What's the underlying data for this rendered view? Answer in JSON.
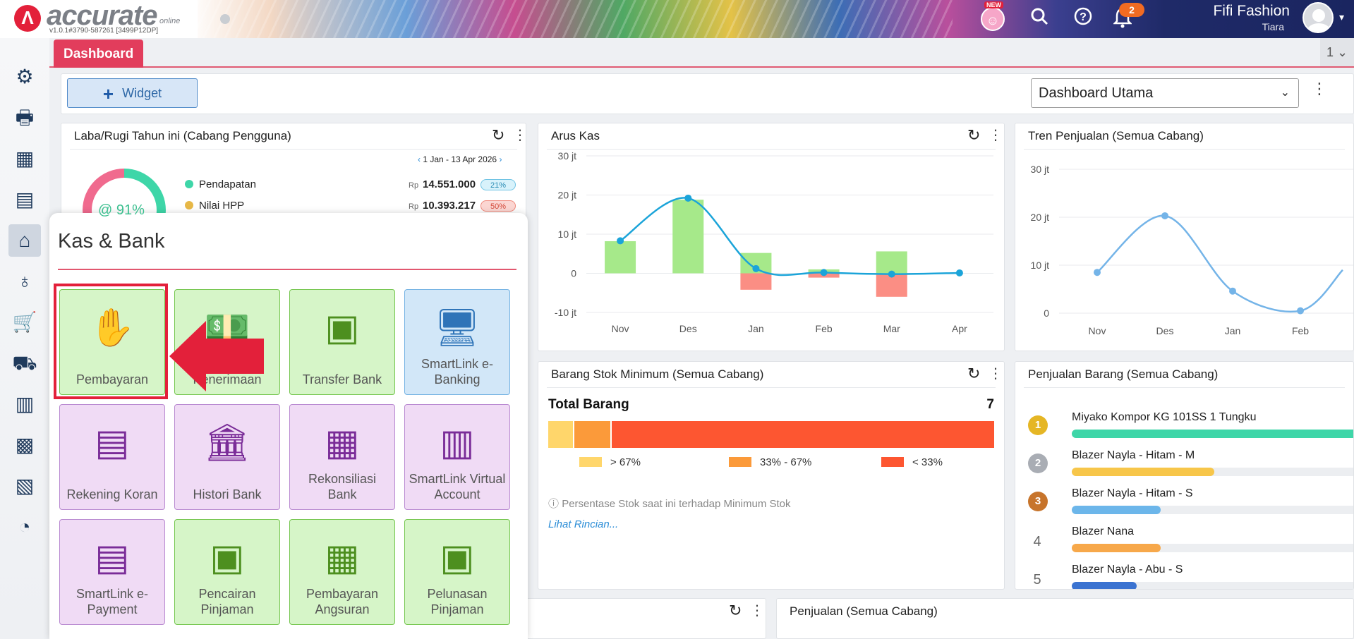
{
  "topbar": {
    "brand": "accurate",
    "brand_suffix": "online",
    "version": "v1.0.1#3790-587261 [3499P12DP]",
    "new_badge": "NEW",
    "notification_count": "2",
    "company": "Fifi Fashion",
    "user": "Tiara"
  },
  "tabs": {
    "active": "Dashboard",
    "counter": "1"
  },
  "toolbar": {
    "widget_label": "Widget",
    "dashboard_select": "Dashboard Utama"
  },
  "laba_rugi": {
    "title": "Laba/Rugi Tahun ini (Cabang Pengguna)",
    "range": "1 Jan - 13 Apr 2026",
    "ring_label": "@ 91%",
    "rows": [
      {
        "label": "Pendapatan",
        "currency": "Rp",
        "value": "14.551.000",
        "badge": "21%",
        "color": "#3ed6a8"
      },
      {
        "label": "Nilai HPP",
        "currency": "Rp",
        "value": "10.393.217",
        "badge": "50%",
        "color": "#e7b847"
      }
    ]
  },
  "arus_kas": {
    "title": "Arus Kas",
    "chart_data": {
      "type": "bar",
      "categories": [
        "Nov",
        "Des",
        "Jan",
        "Feb",
        "Mar",
        "Apr"
      ],
      "ylim": [
        -10,
        30
      ],
      "yticks": [
        "30 jt",
        "20 jt",
        "10 jt",
        "0",
        "-10 jt"
      ],
      "series": [
        {
          "kind": "bar",
          "color": "#a6e98a",
          "values": [
            8.2,
            18.8,
            5.2,
            1.0,
            5.6,
            0
          ]
        },
        {
          "kind": "bar",
          "color": "#fb8e84",
          "values": [
            0,
            0,
            -4.2,
            -1.1,
            -6.0,
            0
          ]
        },
        {
          "kind": "line",
          "color": "#1ba4d9",
          "values": [
            8.3,
            19.2,
            1.2,
            0.2,
            -0.2,
            0.1
          ]
        }
      ]
    }
  },
  "tren_penjualan": {
    "title": "Tren Penjualan (Semua Cabang)",
    "chart_data": {
      "type": "line",
      "categories": [
        "Nov",
        "Des",
        "Jan",
        "Feb"
      ],
      "ylim": [
        0,
        30
      ],
      "yticks": [
        "30 jt",
        "20 jt",
        "10 jt",
        "0"
      ],
      "series": [
        {
          "color": "#74b4e8",
          "values": [
            8.5,
            20.3,
            4.6,
            0.5
          ]
        }
      ]
    }
  },
  "stok_minimum": {
    "title": "Barang Stok Minimum (Semua Cabang)",
    "total_label": "Total Barang",
    "total_value": "7",
    "segments": [
      {
        "share": 1,
        "color": "#ffd66b"
      },
      {
        "share": 1.5,
        "color": "#fb9a3a"
      },
      {
        "share": 15.5,
        "color": "#fd5631"
      }
    ],
    "legend": [
      {
        "label": "> 67%",
        "color": "#ffd66b"
      },
      {
        "label": "33% - 67%",
        "color": "#fb9a3a"
      },
      {
        "label": "< 33%",
        "color": "#fd5631"
      }
    ],
    "note": "Persentase Stok saat ini terhadap Minimum Stok",
    "link": "Lihat Rincian..."
  },
  "penjualan_barang": {
    "title": "Penjualan Barang (Semua Cabang)",
    "items": [
      {
        "rank": "1",
        "name": "Miyako Kompor KG 101SS 1 Tungku",
        "share": 1.0,
        "color": "#3ed6a8",
        "medal": "#e5b625"
      },
      {
        "rank": "2",
        "name": "Blazer Nayla - Hitam - M",
        "share": 0.48,
        "color": "#f7c64a",
        "medal": "#a9adb4"
      },
      {
        "rank": "3",
        "name": "Blazer Nayla - Hitam - S",
        "share": 0.3,
        "color": "#6cb6ea",
        "medal": "#c7742b"
      },
      {
        "rank": "4",
        "name": "Blazer Nana",
        "share": 0.3,
        "color": "#f7a84a",
        "medal": ""
      },
      {
        "rank": "5",
        "name": "Blazer Nayla - Abu - S",
        "share": 0.22,
        "color": "#3b73d1",
        "medal": ""
      }
    ]
  },
  "bottom_cards": {
    "penjualan_title": "Penjualan (Semua Cabang)"
  },
  "kas_bank": {
    "title": "Kas & Bank",
    "tiles": [
      {
        "label": "Pembayaran",
        "icon": "hand-money-icon"
      },
      {
        "label": "Penerimaan",
        "icon": "money-receive-icon"
      },
      {
        "label": "Transfer Bank",
        "icon": "atm-icon"
      },
      {
        "label": "SmartLink e-Banking",
        "icon": "smartlink-ebanking-icon"
      },
      {
        "label": "Rekening Koran",
        "icon": "rekening-koran-icon"
      },
      {
        "label": "Histori Bank",
        "icon": "bank-search-icon"
      },
      {
        "label": "Rekonsiliasi Bank",
        "icon": "reconcile-document-icon"
      },
      {
        "label": "SmartLink Virtual Account",
        "icon": "virtual-account-icon"
      },
      {
        "label": "SmartLink e-Payment",
        "icon": "e-payment-icon"
      },
      {
        "label": "Pencairan Pinjaman",
        "icon": "loan-disbursement-icon"
      },
      {
        "label": "Pembayaran Angsuran",
        "icon": "installment-payment-icon"
      },
      {
        "label": "Pelunasan Pinjaman",
        "icon": "loan-settlement-icon"
      }
    ]
  },
  "sidebar": {
    "items": [
      "gear-icon",
      "cashier-icon",
      "building-icon",
      "book-icon",
      "bank-icon",
      "money-bag-icon",
      "cart-icon",
      "delivery-icon",
      "factory-icon",
      "warehouse-icon",
      "tax-icon",
      "report-chart-icon"
    ]
  }
}
